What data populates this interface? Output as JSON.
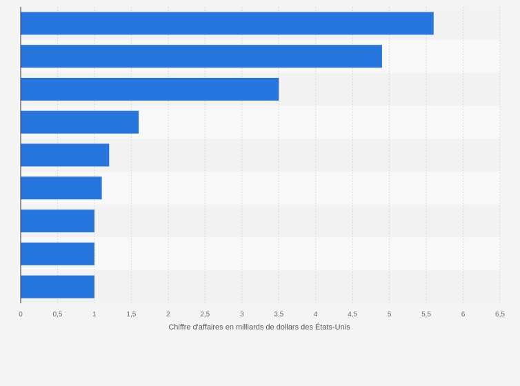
{
  "chart_data": {
    "type": "bar",
    "orientation": "horizontal",
    "categories": [
      "",
      "",
      "",
      "",
      "",
      "",
      "",
      "",
      ""
    ],
    "values": [
      5.6,
      4.9,
      3.5,
      1.6,
      1.2,
      1.1,
      1.0,
      1.0,
      1.0
    ],
    "xlabel": "Chiffre d'affaires en milliards de dollars des États-Unis",
    "ylabel": "",
    "xlim": [
      0,
      6.5
    ],
    "xticks": [
      "0",
      "0,5",
      "1",
      "1,5",
      "2",
      "2,5",
      "3",
      "3,5",
      "4",
      "4,5",
      "5",
      "5,5",
      "6",
      "6,5"
    ],
    "grid": "vertical dashed",
    "legend": "none",
    "colors": {
      "bar": "#2776dd",
      "band_dark": "#f2f2f2",
      "band_light": "#f8f8f8",
      "grid": "#d8d8d8",
      "axis": "#333333"
    }
  }
}
